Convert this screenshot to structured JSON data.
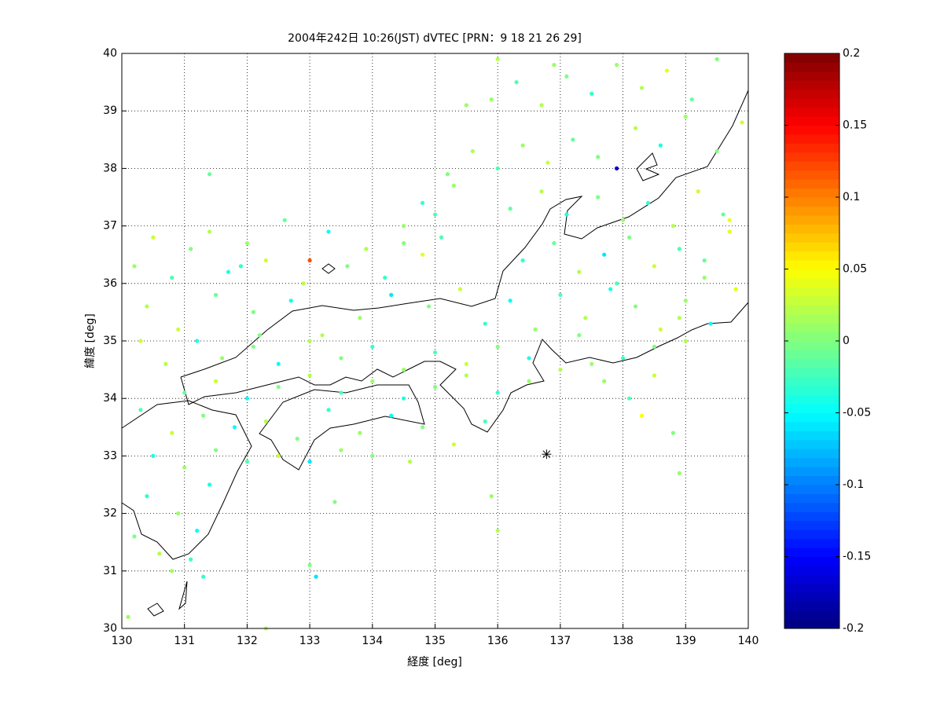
{
  "chart_data": {
    "type": "scatter",
    "title": "2004年242日 10:26(JST) dVTEC [PRN：9 18 21 26 29]",
    "xlabel": "経度 [deg]",
    "ylabel": "緯度 [deg]",
    "xlim": [
      130,
      140
    ],
    "ylim": [
      30,
      40
    ],
    "xticks": [
      130,
      131,
      132,
      133,
      134,
      135,
      136,
      137,
      138,
      139,
      140
    ],
    "yticks": [
      30,
      31,
      32,
      33,
      34,
      35,
      36,
      37,
      38,
      39,
      40
    ],
    "grid": true,
    "colormap": "jet",
    "clim": [
      -0.2,
      0.2
    ],
    "cticks": [
      -0.2,
      -0.15,
      -0.1,
      -0.05,
      0,
      0.05,
      0.1,
      0.15,
      0.2
    ],
    "markers": [
      {
        "x": 136.78,
        "y": 33.03
      }
    ],
    "x": [
      130.2,
      130.5,
      130.8,
      131.1,
      131.4,
      131.7,
      132.0,
      132.3,
      132.6,
      132.9,
      133.3,
      133.6,
      133.9,
      134.2,
      134.5,
      134.8,
      135.1,
      130.4,
      130.9,
      131.5,
      132.1,
      132.7,
      133.2,
      133.8,
      134.3,
      134.9,
      135.4,
      135.8,
      136.2,
      136.6,
      137.0,
      137.4,
      137.8,
      138.2,
      138.6,
      139.0,
      139.4,
      139.8,
      136.4,
      136.9,
      137.3,
      137.7,
      138.1,
      138.5,
      138.9,
      139.3,
      139.7,
      136.2,
      136.7,
      137.1,
      137.6,
      138.0,
      138.4,
      138.8,
      139.2,
      139.6,
      135.2,
      135.6,
      136.0,
      136.4,
      136.8,
      137.2,
      137.6,
      138.2,
      138.6,
      139.0,
      139.5,
      139.9,
      135.9,
      136.3,
      136.7,
      137.1,
      137.5,
      137.9,
      138.3,
      138.7,
      139.1,
      139.5,
      136.0,
      136.9,
      134.8,
      135.3,
      134.5,
      135.0,
      135.5,
      130.3,
      130.7,
      131.2,
      131.6,
      132.1,
      132.5,
      133.0,
      133.5,
      134.0,
      134.5,
      135.0,
      135.5,
      136.0,
      136.5,
      137.0,
      137.5,
      138.0,
      138.5,
      139.0,
      131.0,
      131.5,
      132.0,
      132.5,
      133.0,
      133.5,
      134.0,
      134.5,
      135.0,
      135.5,
      136.0,
      136.5,
      130.3,
      130.8,
      131.3,
      131.8,
      132.3,
      132.8,
      133.3,
      133.8,
      134.3,
      134.8,
      135.3,
      135.8,
      130.5,
      131.0,
      131.5,
      132.0,
      132.5,
      133.0,
      133.5,
      134.0,
      134.6,
      130.4,
      130.9,
      131.4,
      130.2,
      130.6,
      131.2,
      130.8,
      131.3,
      132.3,
      133.1,
      133.4,
      135.9,
      136.0,
      138.9,
      138.8,
      137.9,
      131.4,
      133.0,
      134.6,
      138.3,
      133.0,
      131.1,
      130.1,
      137.3,
      137.7,
      138.1,
      138.5,
      138.9,
      139.3,
      139.7,
      132.2,
      131.9,
      137.9
    ],
    "y": [
      36.3,
      36.8,
      36.1,
      36.6,
      36.9,
      36.2,
      36.7,
      36.4,
      37.1,
      36.0,
      36.9,
      36.3,
      36.6,
      36.1,
      37.0,
      36.5,
      36.8,
      35.6,
      35.2,
      35.8,
      35.5,
      35.7,
      35.1,
      35.4,
      35.8,
      35.6,
      35.9,
      35.3,
      35.7,
      35.2,
      35.8,
      35.4,
      35.9,
      35.6,
      35.2,
      35.7,
      35.3,
      35.9,
      36.4,
      36.7,
      36.2,
      36.5,
      36.8,
      36.3,
      36.6,
      36.1,
      36.9,
      37.3,
      37.6,
      37.2,
      37.5,
      37.1,
      37.4,
      37.0,
      37.6,
      37.2,
      37.9,
      38.3,
      38.0,
      38.4,
      38.1,
      38.5,
      38.2,
      38.7,
      38.4,
      38.9,
      38.3,
      38.8,
      39.2,
      39.5,
      39.1,
      39.6,
      39.3,
      39.8,
      39.4,
      39.7,
      39.2,
      39.9,
      39.9,
      39.8,
      37.4,
      37.7,
      36.7,
      37.2,
      39.1,
      35.0,
      34.6,
      35.0,
      34.7,
      34.9,
      34.6,
      35.0,
      34.7,
      34.9,
      34.5,
      34.8,
      34.6,
      34.9,
      34.7,
      34.5,
      34.6,
      34.7,
      34.9,
      35.0,
      34.1,
      34.3,
      34.0,
      34.2,
      34.4,
      34.1,
      34.3,
      34.0,
      34.2,
      34.4,
      34.1,
      34.3,
      33.8,
      33.4,
      33.7,
      33.5,
      33.6,
      33.3,
      33.8,
      33.4,
      33.7,
      33.5,
      33.2,
      33.6,
      33.0,
      32.8,
      33.1,
      32.9,
      33.0,
      32.9,
      33.1,
      33.0,
      32.9,
      32.3,
      32.0,
      32.5,
      31.6,
      31.3,
      31.7,
      31.0,
      30.9,
      30.0,
      30.9,
      32.2,
      32.3,
      31.7,
      32.7,
      33.4,
      36.0,
      37.9,
      31.1,
      32.9,
      33.7,
      36.4,
      31.2,
      30.2,
      35.1,
      34.3,
      34.0,
      34.4,
      35.4,
      36.4,
      37.1,
      35.1,
      36.3,
      38.0
    ],
    "values": [
      0.01,
      0.03,
      -0.02,
      0.0,
      0.02,
      -0.04,
      0.01,
      0.03,
      -0.01,
      0.02,
      -0.05,
      0.0,
      0.02,
      -0.03,
      0.01,
      0.04,
      -0.02,
      0.02,
      0.03,
      -0.01,
      0.0,
      -0.04,
      0.02,
      0.01,
      -0.06,
      0.0,
      0.03,
      -0.03,
      -0.05,
      0.01,
      -0.02,
      0.02,
      -0.04,
      0.0,
      0.03,
      0.01,
      -0.05,
      0.04,
      -0.03,
      -0.01,
      0.02,
      -0.06,
      0.0,
      0.03,
      -0.02,
      0.01,
      0.04,
      -0.01,
      0.02,
      -0.04,
      0.0,
      0.01,
      -0.03,
      0.02,
      0.03,
      -0.01,
      0.0,
      0.02,
      -0.02,
      0.01,
      0.03,
      -0.01,
      0.0,
      0.02,
      -0.04,
      0.01,
      0.0,
      0.03,
      0.01,
      -0.02,
      0.02,
      0.0,
      -0.03,
      0.01,
      0.02,
      0.04,
      -0.01,
      0.0,
      0.02,
      0.01,
      -0.03,
      0.01,
      0.0,
      -0.02,
      0.01,
      0.03,
      0.02,
      -0.04,
      0.01,
      0.0,
      -0.05,
      0.02,
      0.0,
      -0.03,
      0.01,
      -0.02,
      0.03,
      0.0,
      -0.04,
      0.02,
      0.01,
      -0.03,
      0.0,
      0.02,
      -0.01,
      0.03,
      -0.05,
      0.0,
      0.02,
      -0.02,
      0.01,
      -0.04,
      0.0,
      0.02,
      -0.03,
      0.01,
      -0.02,
      0.03,
      0.0,
      -0.05,
      0.02,
      0.0,
      -0.03,
      0.01,
      -0.05,
      0.0,
      0.03,
      -0.02,
      -0.04,
      0.01,
      0.0,
      -0.02,
      0.03,
      -0.06,
      0.01,
      0.0,
      0.02,
      -0.03,
      0.01,
      -0.04,
      0.0,
      0.02,
      -0.05,
      0.01,
      -0.03,
      0.02,
      -0.06,
      0.0,
      0.01,
      0.02,
      0.01,
      0.0,
      -0.02,
      -0.01,
      0.0,
      0.02,
      0.05,
      0.12,
      -0.03,
      0.01,
      0.0,
      0.01,
      -0.02,
      0.03,
      0.02,
      -0.01,
      0.04,
      0.0,
      -0.03,
      -0.17
    ]
  }
}
